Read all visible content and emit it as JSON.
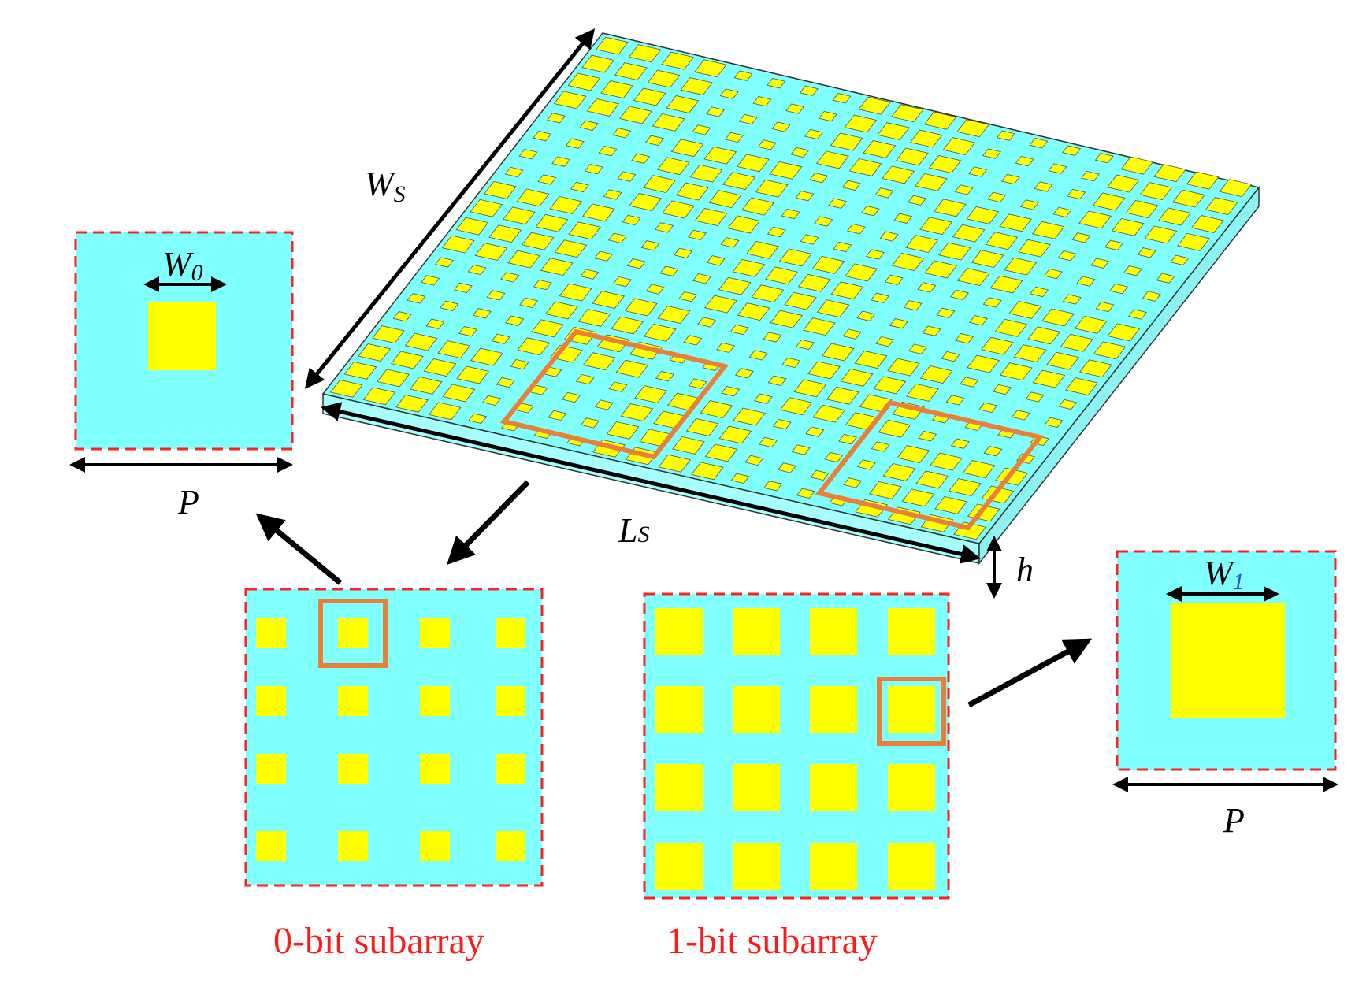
{
  "colors": {
    "substrate": "#80ffff",
    "substrate_side": "#a6ffff",
    "patch": "#ffff00",
    "highlight": "#e8803a",
    "dashed_border": "#ff2020",
    "arrow": "#000000",
    "caption": "#ff1a1a"
  },
  "labels": {
    "ws_main": "W",
    "ws_sub": "S",
    "ls_main": "L",
    "ls_sub": "S",
    "h": "h",
    "w0_main": "W",
    "w0_sub": "0",
    "w1_main": "W",
    "w1_sub": "1",
    "p_left": "P",
    "p_right": "P"
  },
  "captions": {
    "subarray_0": "0-bit subarray",
    "subarray_1": "1-bit subarray"
  }
}
